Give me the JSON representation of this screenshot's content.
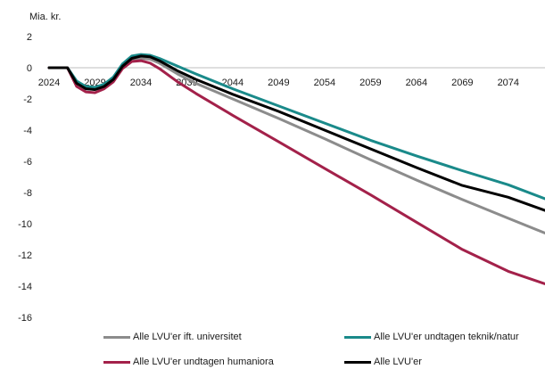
{
  "chart_data": {
    "type": "line",
    "ylabel": "Mia. kr.",
    "ylim": [
      -16,
      2
    ],
    "yticks": [
      2,
      0,
      -2,
      -4,
      -6,
      -8,
      -10,
      -12,
      -14,
      -16
    ],
    "xlim": [
      2024,
      2078
    ],
    "xticks": [
      2024,
      2029,
      2034,
      2039,
      2044,
      2049,
      2054,
      2059,
      2064,
      2069,
      2074
    ],
    "grid": false,
    "legend_position": "bottom",
    "series": [
      {
        "name": "Alle LVU'er ift. universitet",
        "color": "#8c8c8c",
        "x": [
          2024,
          2026,
          2027,
          2028,
          2029,
          2030,
          2031,
          2032,
          2033,
          2034,
          2035,
          2036,
          2038,
          2040,
          2044,
          2049,
          2054,
          2059,
          2064,
          2069,
          2074,
          2078
        ],
        "y": [
          0,
          0,
          -0.9,
          -1.3,
          -1.4,
          -1.2,
          -0.8,
          0,
          0.45,
          0.6,
          0.55,
          0.3,
          -0.4,
          -1.0,
          -2.0,
          -3.25,
          -4.55,
          -5.9,
          -7.2,
          -8.45,
          -9.65,
          -10.6
        ]
      },
      {
        "name": "Alle LVU'er undtagen teknik/natur",
        "color": "#1a8a8a",
        "x": [
          2024,
          2026,
          2027,
          2028,
          2029,
          2030,
          2031,
          2032,
          2033,
          2034,
          2035,
          2036,
          2038,
          2040,
          2044,
          2049,
          2054,
          2059,
          2064,
          2069,
          2074,
          2078
        ],
        "y": [
          0,
          0,
          -0.85,
          -1.2,
          -1.25,
          -1.05,
          -0.6,
          0.25,
          0.75,
          0.85,
          0.8,
          0.6,
          0.1,
          -0.4,
          -1.35,
          -2.45,
          -3.55,
          -4.65,
          -5.65,
          -6.6,
          -7.5,
          -8.4
        ]
      },
      {
        "name": "Alle LVU'er undtagen humaniora",
        "color": "#a3214a",
        "x": [
          2024,
          2026,
          2027,
          2028,
          2029,
          2030,
          2031,
          2032,
          2033,
          2034,
          2035,
          2036,
          2038,
          2040,
          2044,
          2049,
          2054,
          2059,
          2064,
          2069,
          2074,
          2078
        ],
        "y": [
          0,
          0,
          -1.2,
          -1.55,
          -1.6,
          -1.35,
          -0.9,
          -0.05,
          0.4,
          0.45,
          0.3,
          -0.05,
          -0.9,
          -1.65,
          -3.05,
          -4.75,
          -6.45,
          -8.15,
          -9.9,
          -11.65,
          -13.05,
          -13.85
        ]
      },
      {
        "name": "Alle LVU'er",
        "color": "#000000",
        "x": [
          2024,
          2026,
          2027,
          2028,
          2029,
          2030,
          2031,
          2032,
          2033,
          2034,
          2035,
          2036,
          2038,
          2040,
          2044,
          2049,
          2054,
          2059,
          2064,
          2069,
          2074,
          2078
        ],
        "y": [
          0,
          0,
          -1.0,
          -1.35,
          -1.4,
          -1.2,
          -0.75,
          0.1,
          0.6,
          0.75,
          0.7,
          0.45,
          -0.2,
          -0.75,
          -1.7,
          -2.8,
          -4.0,
          -5.2,
          -6.4,
          -7.55,
          -8.3,
          -9.15
        ]
      }
    ]
  }
}
